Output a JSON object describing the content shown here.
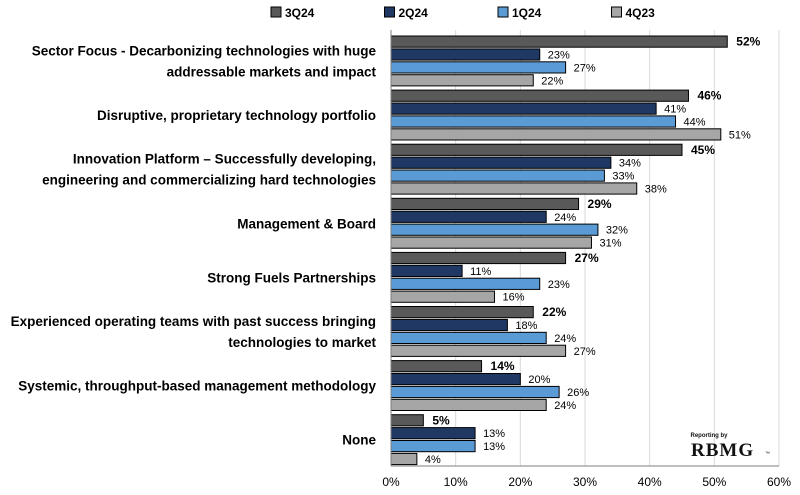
{
  "chart_data": {
    "type": "bar",
    "orientation": "horizontal",
    "categories": [
      [
        "Sector Focus - Decarbonizing technologies with huge",
        "addressable markets and impact"
      ],
      [
        "Disruptive, proprietary technology portfolio"
      ],
      [
        "Innovation Platform – Successfully developing,",
        "engineering and commercializing hard technologies"
      ],
      [
        "Management & Board"
      ],
      [
        "Strong Fuels Partnerships"
      ],
      [
        "Experienced operating teams with past success bringing",
        "technologies to market"
      ],
      [
        "Systemic, throughput-based management methodology"
      ],
      [
        "None"
      ]
    ],
    "series": [
      {
        "name": "3Q24",
        "color": "#595959",
        "values": [
          52,
          46,
          45,
          29,
          27,
          22,
          14,
          5
        ]
      },
      {
        "name": "2Q24",
        "color": "#1f3864",
        "values": [
          23,
          41,
          34,
          24,
          11,
          18,
          20,
          13
        ]
      },
      {
        "name": "1Q24",
        "color": "#5b9bd5",
        "values": [
          27,
          44,
          33,
          32,
          23,
          24,
          26,
          13
        ]
      },
      {
        "name": "4Q23",
        "color": "#a6a6a6",
        "values": [
          22,
          51,
          38,
          31,
          16,
          27,
          24,
          4
        ]
      }
    ],
    "value_format": "percent",
    "bold_series_labels": "3Q24",
    "xlim": [
      0,
      60
    ],
    "xticks": [
      "0%",
      "10%",
      "20%",
      "30%",
      "40%",
      "50%",
      "60%"
    ],
    "grid": "vertical",
    "legend_position": "top"
  },
  "branding": {
    "reporting_by": "Reporting by",
    "logo": "RBMG",
    "trademark": "™"
  }
}
